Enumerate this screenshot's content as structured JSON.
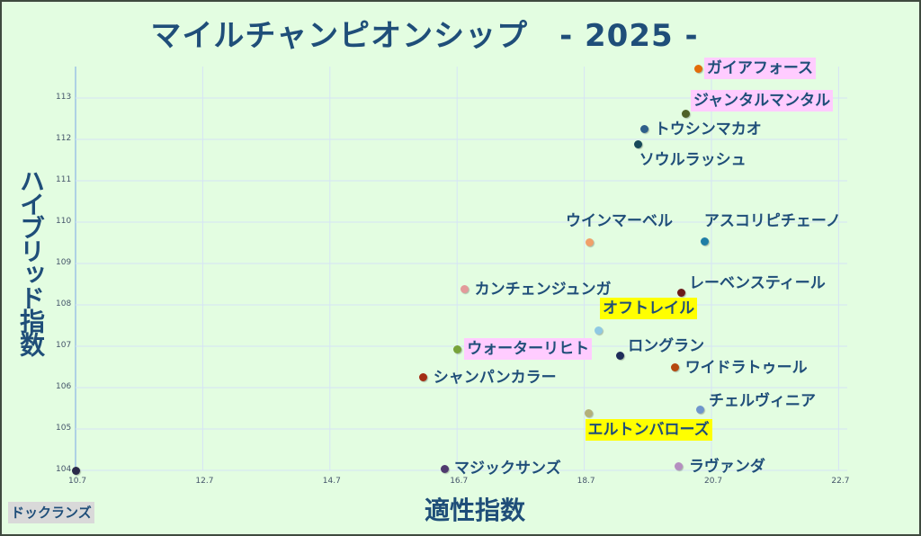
{
  "title": "マイルチャンピオンシップ　- 2025 -",
  "chart_data": {
    "type": "scatter",
    "title": "マイルチャンピオンシップ　- 2025 -",
    "xlabel": "適性指数",
    "ylabel": "ハイブリッド指数",
    "xlim": [
      10.7,
      23.4
    ],
    "ylim": [
      104,
      114.1
    ],
    "x_ticks": [
      "10.7",
      "12.7",
      "14.7",
      "16.7",
      "18.7",
      "20.7",
      "22.7"
    ],
    "y_ticks": [
      "104",
      "105",
      "106",
      "107",
      "108",
      "109",
      "110",
      "111",
      "112",
      "113"
    ],
    "grid": true,
    "legend": "none",
    "points": [
      {
        "name": "ガイアフォース",
        "x": 20.5,
        "y": 113.7,
        "color": "#e36c09",
        "highlight": "pink",
        "label_pos": "right"
      },
      {
        "name": "ジャンタルマンタル",
        "x": 20.29,
        "y": 112.63,
        "color": "#4f6228",
        "highlight": "pink",
        "label_pos": "upper-right"
      },
      {
        "name": "トウシンマカオ",
        "x": 19.65,
        "y": 112.24,
        "color": "#2e5f8a",
        "highlight": "none",
        "label_pos": "right"
      },
      {
        "name": "ソウルラッシュ",
        "x": 19.55,
        "y": 111.89,
        "color": "#17495a",
        "highlight": "none",
        "label_pos": "below"
      },
      {
        "name": "ウインマーベル",
        "x": 18.79,
        "y": 109.52,
        "color": "#f0a06a",
        "highlight": "none",
        "label_pos": "above"
      },
      {
        "name": "アスコリピチェーノ",
        "x": 20.6,
        "y": 109.54,
        "color": "#1f7ea6",
        "highlight": "none",
        "label_pos": "above"
      },
      {
        "name": "カンチェンジュンガ",
        "x": 16.82,
        "y": 108.37,
        "color": "#e39a9a",
        "highlight": "none",
        "label_pos": "right"
      },
      {
        "name": "レーベンスティール",
        "x": 20.22,
        "y": 108.3,
        "color": "#6b1a1a",
        "highlight": "none",
        "label_pos": "upper-right"
      },
      {
        "name": "オフトレイル",
        "x": 18.92,
        "y": 107.37,
        "color": "#8fc9e3",
        "highlight": "yellow",
        "label_pos": "above"
      },
      {
        "name": "ウォーターリヒト",
        "x": 16.7,
        "y": 106.93,
        "color": "#77a33a",
        "highlight": "pink",
        "label_pos": "right"
      },
      {
        "name": "ロングラン",
        "x": 19.26,
        "y": 106.78,
        "color": "#1f2d5a",
        "highlight": "none",
        "label_pos": "upper-right"
      },
      {
        "name": "ワイドラトゥール",
        "x": 20.13,
        "y": 106.48,
        "color": "#b5470e",
        "highlight": "none",
        "label_pos": "right"
      },
      {
        "name": "シャンパンカラー",
        "x": 16.17,
        "y": 106.24,
        "color": "#a32d14",
        "highlight": "none",
        "label_pos": "right"
      },
      {
        "name": "チェルヴィニア",
        "x": 20.53,
        "y": 105.46,
        "color": "#6f96cc",
        "highlight": "none",
        "label_pos": "upper-right"
      },
      {
        "name": "エルトンバローズ",
        "x": 18.77,
        "y": 105.37,
        "color": "#b3b07a",
        "highlight": "yellow",
        "label_pos": "below"
      },
      {
        "name": "マジックサンズ",
        "x": 16.5,
        "y": 104.04,
        "color": "#4f3a6e",
        "highlight": "none",
        "label_pos": "right"
      },
      {
        "name": "ラヴァンダ",
        "x": 20.19,
        "y": 104.09,
        "color": "#b58fc0",
        "highlight": "none",
        "label_pos": "right"
      },
      {
        "name": "ドックランズ",
        "x": 10.7,
        "y": 104.0,
        "color": "#2a2a4a",
        "highlight": "gray",
        "label_pos": "bottom-left-box"
      }
    ]
  },
  "colors": {
    "background": "#e3fde1",
    "title_text": "#1f4e79",
    "grid": "#d6e4f5",
    "highlight_pink": "#ffccff",
    "highlight_yellow": "#ffff00",
    "highlight_gray": "#d9d9d9"
  }
}
